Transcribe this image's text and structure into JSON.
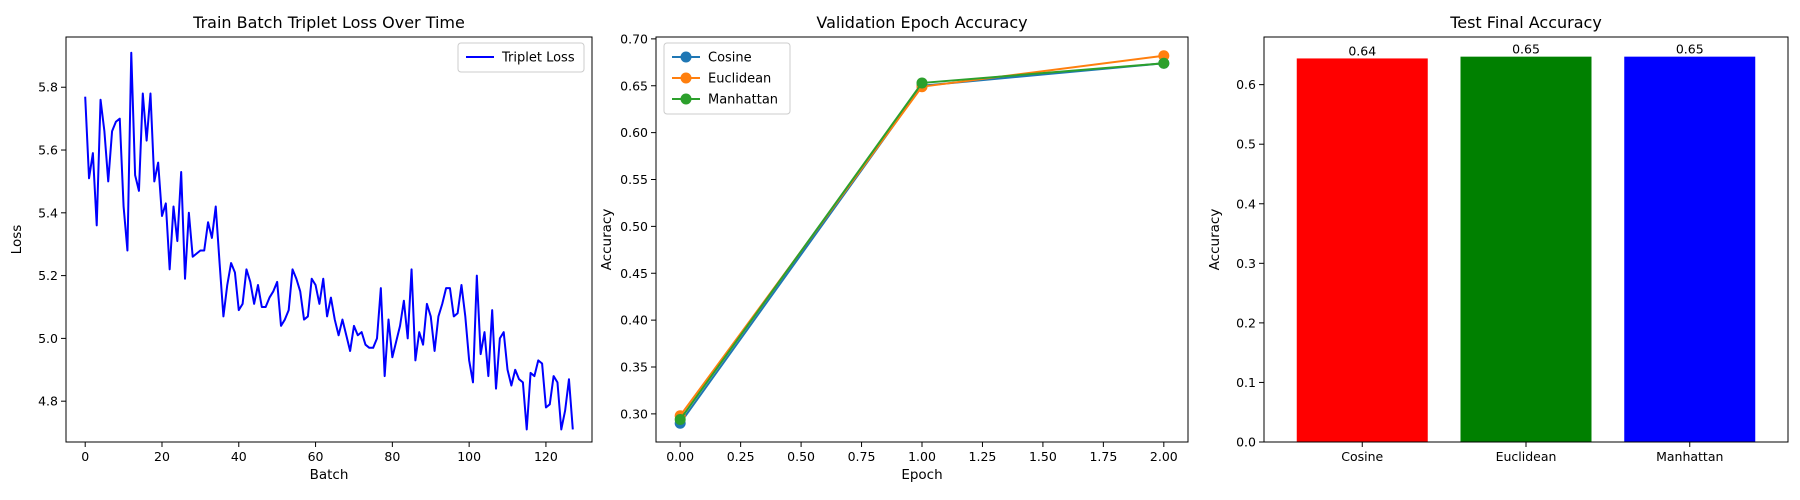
{
  "chart_data": [
    {
      "type": "line",
      "title": "Train Batch Triplet Loss Over Time",
      "xlabel": "Batch",
      "ylabel": "Loss",
      "xlim": [
        -5,
        132
      ],
      "ylim": [
        4.67,
        5.96
      ],
      "xticks": [
        0,
        20,
        40,
        60,
        80,
        100,
        120
      ],
      "yticks": [
        4.8,
        5.0,
        5.2,
        5.4,
        5.6,
        5.8
      ],
      "ytick_decimals": 1,
      "legend_position": "top-right",
      "series": [
        {
          "name": "Triplet Loss",
          "color": "#0000ff",
          "marker": false,
          "x_start": 0,
          "values": [
            5.77,
            5.51,
            5.59,
            5.36,
            5.76,
            5.66,
            5.5,
            5.66,
            5.69,
            5.7,
            5.42,
            5.28,
            5.91,
            5.52,
            5.47,
            5.78,
            5.63,
            5.78,
            5.5,
            5.56,
            5.39,
            5.43,
            5.22,
            5.42,
            5.31,
            5.53,
            5.19,
            5.4,
            5.26,
            5.27,
            5.28,
            5.28,
            5.37,
            5.32,
            5.42,
            5.24,
            5.07,
            5.17,
            5.24,
            5.21,
            5.09,
            5.11,
            5.22,
            5.18,
            5.11,
            5.17,
            5.1,
            5.1,
            5.13,
            5.15,
            5.18,
            5.04,
            5.06,
            5.09,
            5.22,
            5.19,
            5.15,
            5.06,
            5.07,
            5.19,
            5.17,
            5.11,
            5.19,
            5.07,
            5.13,
            5.06,
            5.01,
            5.06,
            5.01,
            4.96,
            5.04,
            5.01,
            5.02,
            4.98,
            4.97,
            4.97,
            5.0,
            5.16,
            4.88,
            5.06,
            4.94,
            4.99,
            5.04,
            5.12,
            5.0,
            5.22,
            4.93,
            5.02,
            4.98,
            5.11,
            5.07,
            4.96,
            5.07,
            5.11,
            5.16,
            5.16,
            5.07,
            5.08,
            5.17,
            5.07,
            4.93,
            4.86,
            5.2,
            4.95,
            5.02,
            4.88,
            5.09,
            4.84,
            5.0,
            5.02,
            4.9,
            4.85,
            4.9,
            4.87,
            4.86,
            4.71,
            4.89,
            4.88,
            4.93,
            4.92,
            4.78,
            4.79,
            4.88,
            4.86,
            4.71,
            4.77,
            4.87,
            4.71
          ]
        }
      ]
    },
    {
      "type": "line",
      "title": "Validation Epoch Accuracy",
      "xlabel": "Epoch",
      "ylabel": "Accuracy",
      "xlim": [
        -0.1,
        2.1
      ],
      "ylim": [
        0.27,
        0.702
      ],
      "xticks": [
        0.0,
        0.25,
        0.5,
        0.75,
        1.0,
        1.25,
        1.5,
        1.75,
        2.0
      ],
      "xtick_decimals": 2,
      "yticks": [
        0.3,
        0.35,
        0.4,
        0.45,
        0.5,
        0.55,
        0.6,
        0.65,
        0.7
      ],
      "ytick_decimals": 2,
      "legend_position": "top-left",
      "x": [
        0,
        1,
        2
      ],
      "series": [
        {
          "name": "Cosine",
          "color": "#1f77b4",
          "marker": true,
          "values": [
            0.29,
            0.65,
            0.674
          ]
        },
        {
          "name": "Euclidean",
          "color": "#ff7f0e",
          "marker": true,
          "values": [
            0.298,
            0.649,
            0.682
          ]
        },
        {
          "name": "Manhattan",
          "color": "#2ca02c",
          "marker": true,
          "values": [
            0.294,
            0.653,
            0.674
          ]
        }
      ]
    },
    {
      "type": "bar",
      "title": "Test Final Accuracy",
      "xlabel": "",
      "ylabel": "Accuracy",
      "ylim": [
        0,
        0.68
      ],
      "yticks": [
        0.0,
        0.1,
        0.2,
        0.3,
        0.4,
        0.5,
        0.6
      ],
      "ytick_decimals": 1,
      "categories": [
        "Cosine",
        "Euclidean",
        "Manhattan"
      ],
      "values": [
        0.644,
        0.647,
        0.647
      ],
      "value_labels": [
        "0.64",
        "0.65",
        "0.65"
      ],
      "colors": [
        "#ff0000",
        "#008000",
        "#0000ff"
      ]
    }
  ]
}
